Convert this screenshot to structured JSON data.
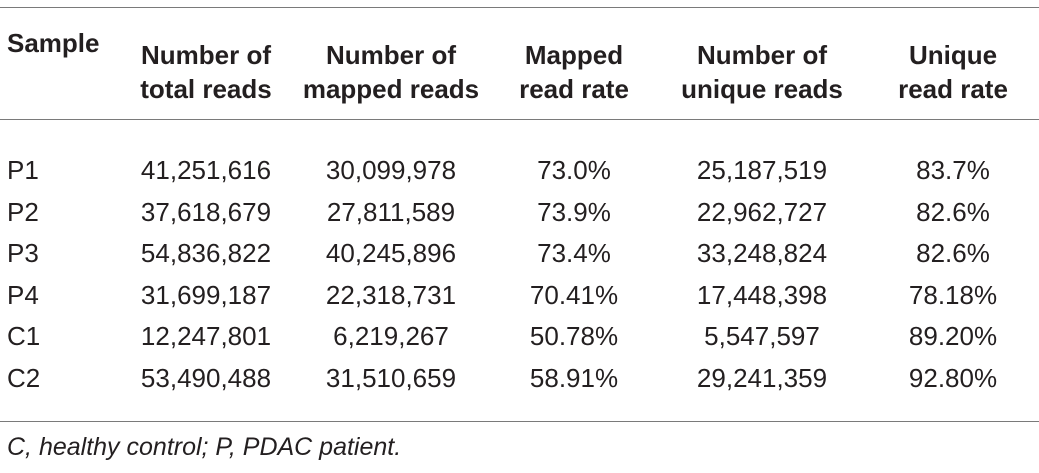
{
  "table": {
    "headers": [
      [
        "Sample"
      ],
      [
        "Number of",
        "total reads"
      ],
      [
        "Number of",
        "mapped reads"
      ],
      [
        "Mapped",
        "read rate"
      ],
      [
        "Number of",
        "unique reads"
      ],
      [
        "Unique",
        "read rate"
      ]
    ],
    "rows": [
      [
        "P1",
        "41,251,616",
        "30,099,978",
        "73.0%",
        "25,187,519",
        "83.7%"
      ],
      [
        "P2",
        "37,618,679",
        "27,811,589",
        "73.9%",
        "22,962,727",
        "82.6%"
      ],
      [
        "P3",
        "54,836,822",
        "40,245,896",
        "73.4%",
        "33,248,824",
        "82.6%"
      ],
      [
        "P4",
        "31,699,187",
        "22,318,731",
        "70.41%",
        "17,448,398",
        "78.18%"
      ],
      [
        "C1",
        "12,247,801",
        "6,219,267",
        "50.78%",
        "5,547,597",
        "89.20%"
      ],
      [
        "C2",
        "53,490,488",
        "31,510,659",
        "58.91%",
        "29,241,359",
        "92.80%"
      ]
    ]
  },
  "footnote": "C, healthy control; P, PDAC patient."
}
